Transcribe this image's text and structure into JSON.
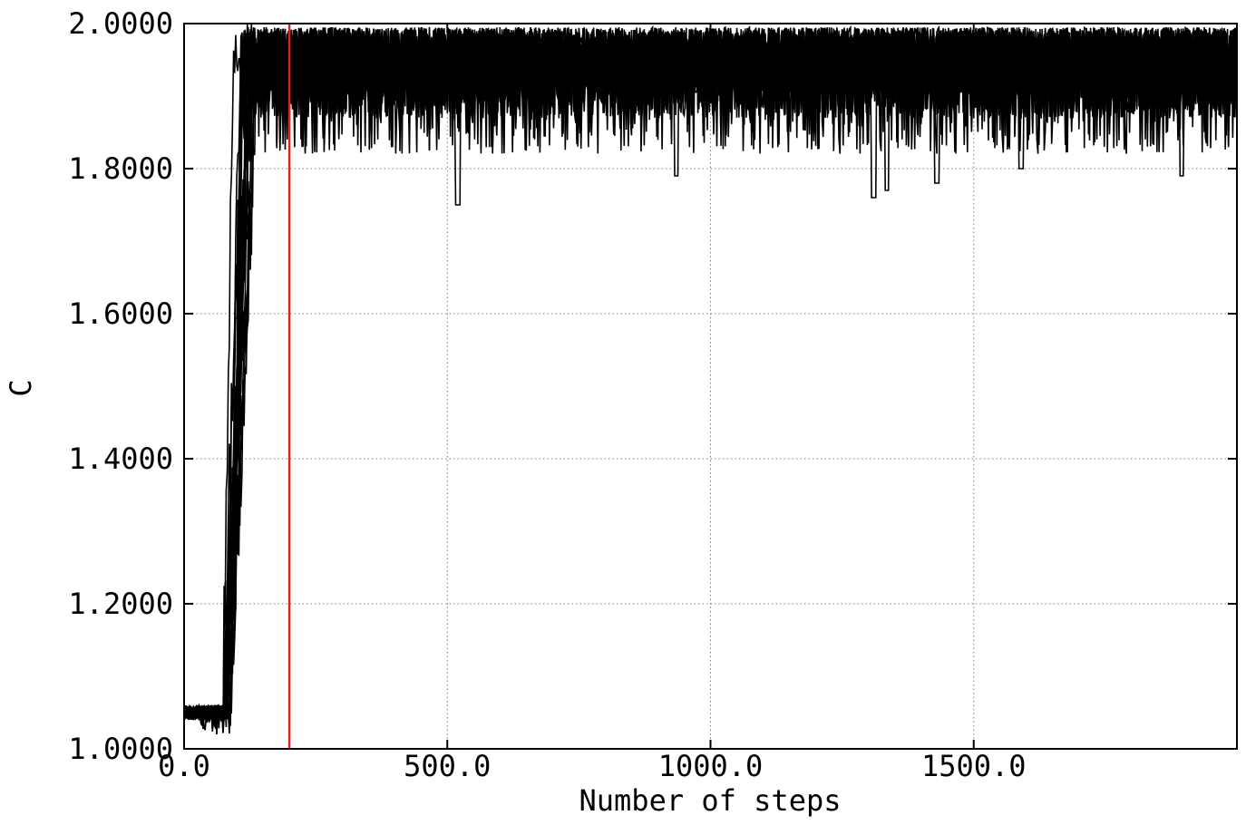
{
  "chart_data": {
    "type": "line",
    "title": "",
    "xlabel": "Number of steps",
    "ylabel": "C",
    "xlim": [
      0,
      2000
    ],
    "ylim": [
      1.0,
      2.0
    ],
    "xticks": [
      0,
      500,
      1000,
      1500
    ],
    "xtick_labels": [
      "0.0",
      "500.0",
      "1000.0",
      "1500.0"
    ],
    "yticks": [
      1.0,
      1.2,
      1.4,
      1.6,
      1.8,
      2.0
    ],
    "ytick_labels": [
      "1.0000",
      "1.2000",
      "1.4000",
      "1.6000",
      "1.8000",
      "2.0000"
    ],
    "grid": true,
    "vline": {
      "x": 200,
      "color": "#d62728"
    },
    "series_color": "#000000",
    "series_count": 20,
    "burn_in_x": 200,
    "initial_value": 1.05,
    "transition_start_x": 70,
    "transition_end_x": 140,
    "plateau_upper": 2.0,
    "plateau_lower_typical": 1.87,
    "notable_dips": [
      {
        "x": 520,
        "y": 1.75
      },
      {
        "x": 935,
        "y": 1.79
      },
      {
        "x": 1310,
        "y": 1.76
      },
      {
        "x": 1335,
        "y": 1.77
      },
      {
        "x": 1430,
        "y": 1.78
      },
      {
        "x": 1590,
        "y": 1.8
      },
      {
        "x": 1895,
        "y": 1.79
      }
    ]
  }
}
